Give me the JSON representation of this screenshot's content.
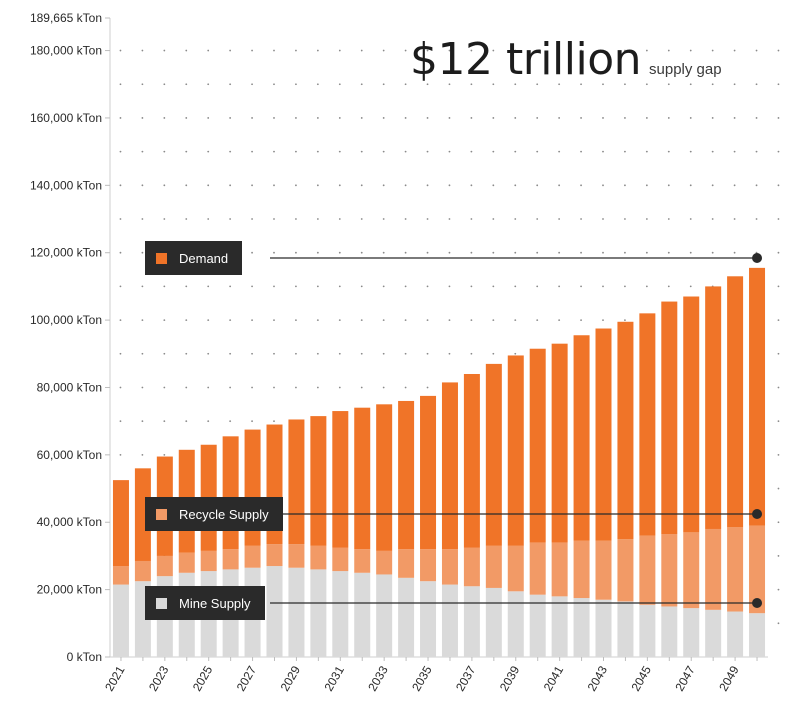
{
  "headline": {
    "value": "$12 trillion",
    "caption": "supply gap"
  },
  "legend": [
    {
      "key": "demand",
      "label": "Demand",
      "color": "#f07428"
    },
    {
      "key": "recycle",
      "label": "Recycle Supply",
      "color": "#f29a66"
    },
    {
      "key": "mine",
      "label": "Mine Supply",
      "color": "#dadada"
    }
  ],
  "chart_data": {
    "type": "bar",
    "stacked": true,
    "unit": "kTon",
    "x": [
      2021,
      2022,
      2023,
      2024,
      2025,
      2026,
      2027,
      2028,
      2029,
      2030,
      2031,
      2032,
      2033,
      2034,
      2035,
      2036,
      2037,
      2038,
      2039,
      2040,
      2041,
      2042,
      2043,
      2044,
      2045,
      2046,
      2047,
      2048,
      2049,
      2050
    ],
    "x_tick_labels": [
      "2021",
      "2023",
      "2025",
      "2027",
      "2029",
      "2031",
      "2033",
      "2035",
      "2037",
      "2039",
      "2041",
      "2043",
      "2045",
      "2047",
      "2049"
    ],
    "y_ticks": [
      0,
      20000,
      40000,
      60000,
      80000,
      100000,
      120000,
      140000,
      160000,
      180000,
      189665
    ],
    "y_tick_labels": [
      "0 kTon",
      "20,000 kTon",
      "40,000 kTon",
      "60,000 kTon",
      "80,000 kTon",
      "100,000 kTon",
      "120,000 kTon",
      "140,000 kTon",
      "160,000 kTon",
      "180,000 kTon",
      "189,665 kTon"
    ],
    "ylim": [
      0,
      189665
    ],
    "series": [
      {
        "name": "Mine Supply",
        "color": "#dadada",
        "values": [
          21500,
          22500,
          24000,
          25000,
          25500,
          26000,
          26500,
          27000,
          26500,
          26000,
          25500,
          25000,
          24500,
          23500,
          22500,
          21500,
          21000,
          20500,
          19500,
          18500,
          18000,
          17500,
          17000,
          16500,
          15500,
          15000,
          14500,
          14000,
          13500,
          13000
        ]
      },
      {
        "name": "Recycle Supply",
        "color": "#f29a66",
        "values": [
          5500,
          6000,
          6000,
          6000,
          6000,
          6000,
          6500,
          6500,
          7000,
          7000,
          7000,
          7000,
          7000,
          8500,
          9500,
          10500,
          11500,
          12500,
          13500,
          15500,
          16000,
          17000,
          17500,
          18500,
          20500,
          21500,
          22500,
          24000,
          25000,
          26000
        ]
      },
      {
        "name": "Demand",
        "color": "#f07428",
        "values": [
          25500,
          27500,
          29500,
          30500,
          31500,
          33500,
          34500,
          35500,
          37000,
          38500,
          40500,
          42000,
          43500,
          44000,
          45500,
          49500,
          51500,
          54000,
          56500,
          57500,
          59000,
          61000,
          63000,
          64500,
          66000,
          69000,
          70000,
          72000,
          74500,
          76500
        ]
      }
    ],
    "grid": "dotted",
    "legend_placement": "left, connected to the final bar"
  }
}
